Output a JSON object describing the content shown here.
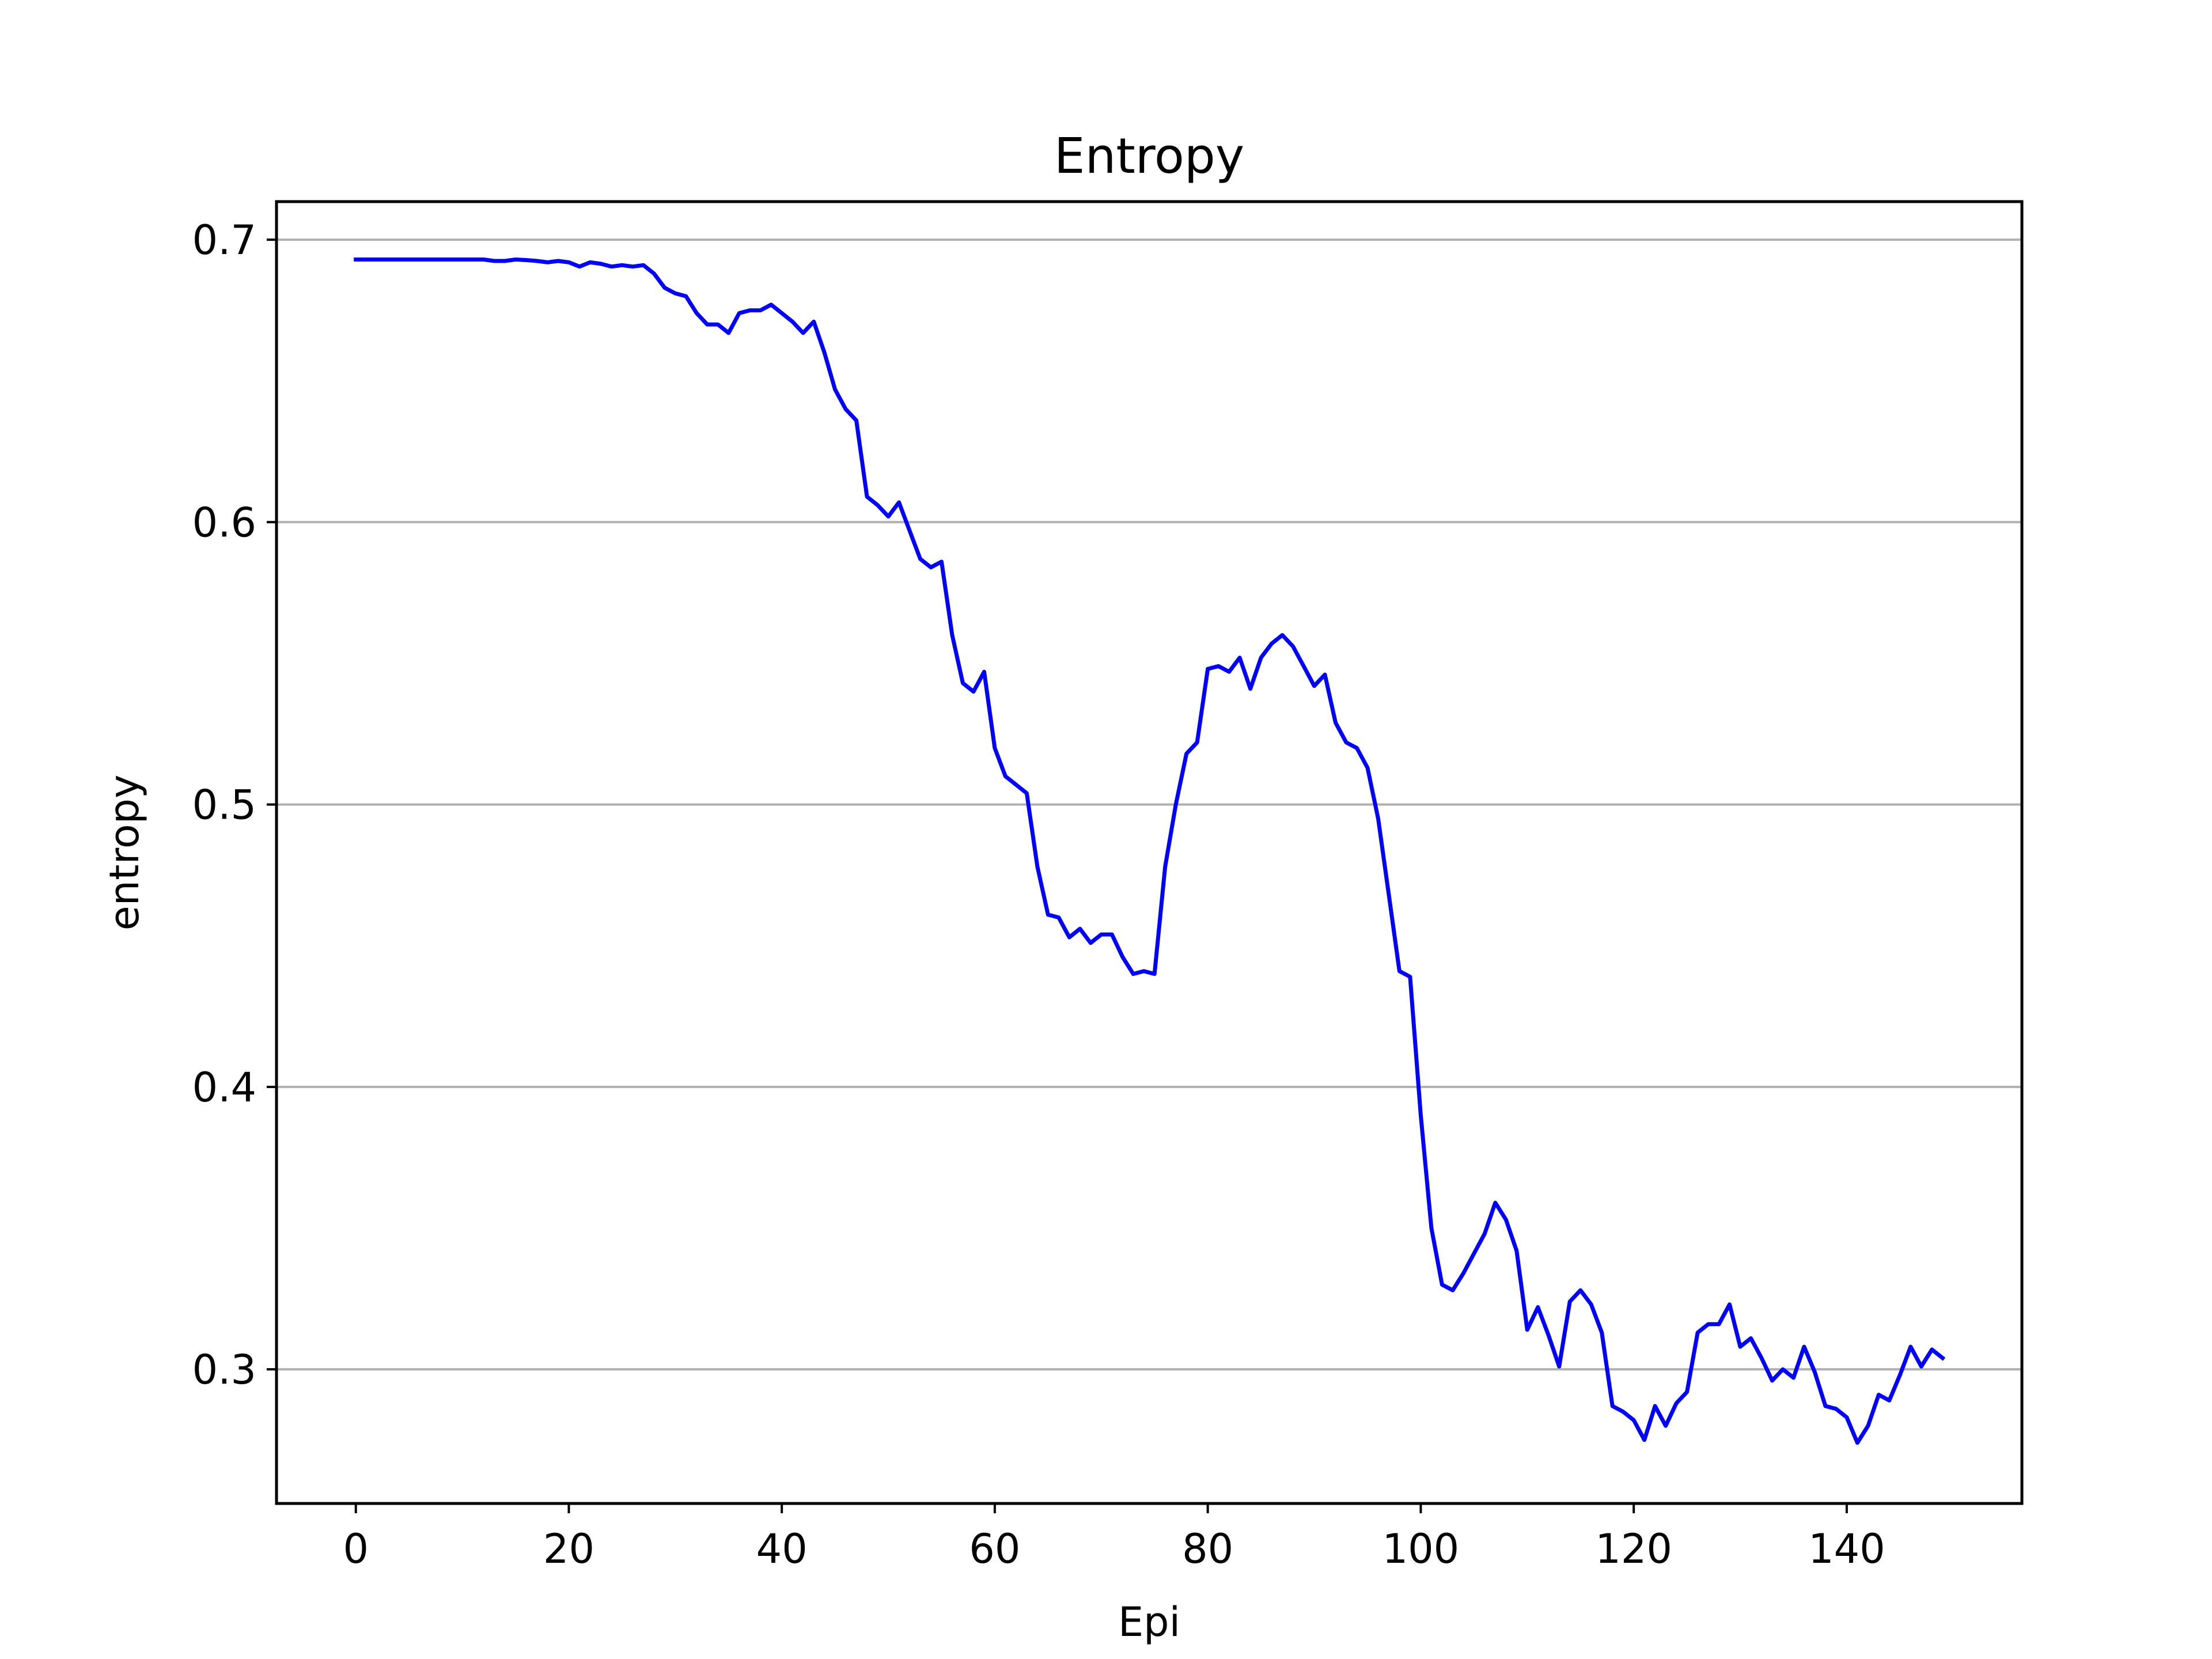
{
  "chart_data": {
    "type": "line",
    "title": "Entropy",
    "xlabel": "Epi",
    "ylabel": "entropy",
    "xlim": [
      -7.45,
      156.45
    ],
    "ylim": [
      0.2525,
      0.7135
    ],
    "xticks": [
      0,
      20,
      40,
      60,
      80,
      100,
      120,
      140
    ],
    "yticks": [
      0.3,
      0.4,
      0.5,
      0.6,
      0.7
    ],
    "ytick_labels": [
      "0.3",
      "0.4",
      "0.5",
      "0.6",
      "0.7"
    ],
    "grid": "y-major",
    "colors": {
      "line": "#0000ff",
      "grid": "#b0b0b0",
      "axes": "#000000"
    },
    "series": [
      {
        "x": [
          0,
          1,
          2,
          3,
          4,
          5,
          6,
          7,
          8,
          9,
          10,
          11,
          12,
          13,
          14,
          15,
          16,
          17,
          18,
          19,
          20,
          21,
          22,
          23,
          24,
          25,
          26,
          27,
          28,
          29,
          30,
          31,
          32,
          33,
          34,
          35,
          36,
          37,
          38,
          39,
          40,
          41,
          42,
          43,
          44,
          45,
          46,
          47,
          48,
          49,
          50,
          51,
          52,
          53,
          54,
          55,
          56,
          57,
          58,
          59,
          60,
          61,
          62,
          63,
          64,
          65,
          66,
          67,
          68,
          69,
          70,
          71,
          72,
          73,
          74,
          75,
          76,
          77,
          78,
          79,
          80,
          81,
          82,
          83,
          84,
          85,
          86,
          87,
          88,
          89,
          90,
          91,
          92,
          93,
          94,
          95,
          96,
          97,
          98,
          99,
          100,
          101,
          102,
          103,
          104,
          105,
          106,
          107,
          108,
          109,
          110,
          111,
          112,
          113,
          114,
          115,
          116,
          117,
          118,
          119,
          120,
          121,
          122,
          123,
          124,
          125,
          126,
          127,
          128,
          129,
          130,
          131,
          132,
          133,
          134,
          135,
          136,
          137,
          138,
          139,
          140,
          141,
          142,
          143,
          144,
          145,
          146,
          147,
          148,
          149
        ],
        "y": [
          0.693,
          0.693,
          0.693,
          0.693,
          0.693,
          0.693,
          0.693,
          0.693,
          0.693,
          0.693,
          0.693,
          0.693,
          0.693,
          0.6925,
          0.6925,
          0.693,
          0.6928,
          0.6925,
          0.692,
          0.6925,
          0.692,
          0.6905,
          0.692,
          0.6915,
          0.6905,
          0.691,
          0.6905,
          0.691,
          0.688,
          0.683,
          0.681,
          0.68,
          0.674,
          0.67,
          0.67,
          0.667,
          0.674,
          0.675,
          0.675,
          0.677,
          0.674,
          0.671,
          0.667,
          0.671,
          0.66,
          0.647,
          0.64,
          0.636,
          0.609,
          0.606,
          0.602,
          0.607,
          0.597,
          0.587,
          0.584,
          0.586,
          0.56,
          0.543,
          0.54,
          0.547,
          0.52,
          0.51,
          0.507,
          0.504,
          0.478,
          0.461,
          0.46,
          0.453,
          0.456,
          0.451,
          0.454,
          0.454,
          0.446,
          0.44,
          0.441,
          0.44,
          0.478,
          0.5,
          0.518,
          0.522,
          0.548,
          0.549,
          0.547,
          0.552,
          0.541,
          0.552,
          0.557,
          0.56,
          0.556,
          0.549,
          0.542,
          0.546,
          0.529,
          0.522,
          0.52,
          0.513,
          0.495,
          0.468,
          0.441,
          0.439,
          0.39,
          0.35,
          0.33,
          0.328,
          0.334,
          0.341,
          0.348,
          0.359,
          0.353,
          0.342,
          0.314,
          0.322,
          0.312,
          0.301,
          0.324,
          0.328,
          0.323,
          0.313,
          0.287,
          0.285,
          0.282,
          0.275,
          0.287,
          0.28,
          0.288,
          0.292,
          0.313,
          0.316,
          0.316,
          0.323,
          0.308,
          0.311,
          0.304,
          0.296,
          0.3,
          0.297,
          0.308,
          0.299,
          0.287,
          0.286,
          0.283,
          0.274,
          0.28,
          0.291,
          0.289,
          0.298,
          0.308,
          0.301,
          0.307,
          0.304
        ]
      }
    ]
  }
}
